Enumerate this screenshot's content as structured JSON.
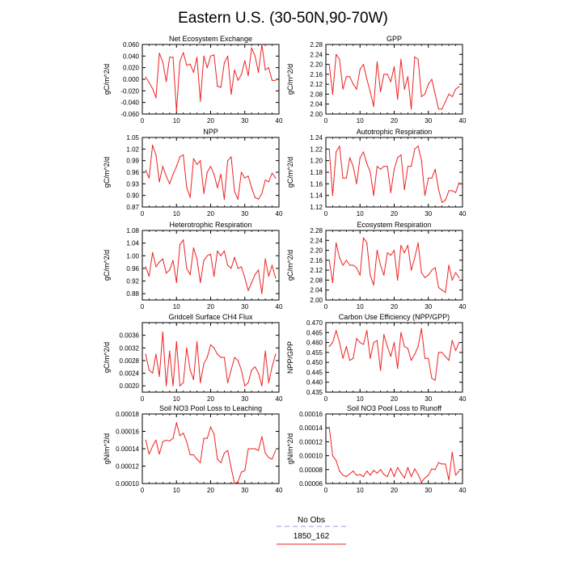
{
  "page_title": "Eastern U.S. (30-50N,90-70W)",
  "legend": {
    "entries": [
      {
        "label": "No Obs",
        "color": "#9999ee",
        "dashed": true
      },
      {
        "label": "1850_162",
        "color": "#ee2222",
        "dashed": false
      }
    ]
  },
  "chart_data": [
    {
      "type": "line",
      "title": "Net Ecosystem Exchange",
      "ylabel": "gC/m^2/d",
      "xlim": [
        0,
        40
      ],
      "xticks": [
        0,
        10,
        20,
        30,
        40
      ],
      "ylim": [
        -0.06,
        0.06
      ],
      "yticks": [
        "-0.060",
        "-0.040",
        "-0.020",
        "0.000",
        "0.020",
        "0.040",
        "0.060"
      ],
      "grid": false,
      "color": "#ee2222",
      "series": [
        {
          "x": [
            1,
            2,
            3,
            4,
            5,
            6,
            7,
            8,
            9,
            10,
            11,
            12,
            13,
            14,
            15,
            16,
            17,
            18,
            19,
            20,
            21,
            22,
            23,
            24,
            25,
            26,
            27,
            28,
            29,
            30,
            31,
            32,
            33,
            34,
            35,
            36,
            37,
            38,
            39
          ],
          "values": [
            0.004,
            -0.006,
            -0.016,
            -0.032,
            0.045,
            0.03,
            -0.004,
            0.038,
            0.038,
            -0.055,
            0.031,
            0.046,
            0.024,
            0.026,
            0.012,
            0.038,
            -0.038,
            0.04,
            0.02,
            0.04,
            0.042,
            -0.012,
            -0.014,
            0.028,
            0.04,
            -0.026,
            0.016,
            -0.002,
            0.008,
            0.032,
            0.006,
            0.054,
            0.04,
            0.012,
            0.06,
            0.016,
            0.02,
            -0.002,
            -0.002
          ]
        }
      ]
    },
    {
      "type": "line",
      "title": "GPP",
      "ylabel": "gC/m^2/d",
      "xlim": [
        0,
        40
      ],
      "xticks": [
        0,
        10,
        20,
        30,
        40
      ],
      "ylim": [
        2.0,
        2.28
      ],
      "yticks": [
        "2.00",
        "2.04",
        "2.08",
        "2.12",
        "2.16",
        "2.20",
        "2.24",
        "2.28"
      ],
      "grid": false,
      "color": "#ee2222",
      "series": [
        {
          "x": [
            1,
            2,
            3,
            4,
            5,
            6,
            7,
            8,
            9,
            10,
            11,
            12,
            13,
            14,
            15,
            16,
            17,
            18,
            19,
            20,
            21,
            22,
            23,
            24,
            25,
            26,
            27,
            28,
            29,
            30,
            31,
            32,
            33,
            34,
            35,
            36,
            37,
            38,
            39
          ],
          "values": [
            2.2,
            2.08,
            2.24,
            2.22,
            2.1,
            2.15,
            2.15,
            2.12,
            2.1,
            2.18,
            2.2,
            2.14,
            2.09,
            2.03,
            2.21,
            2.09,
            2.16,
            2.16,
            2.13,
            2.19,
            2.06,
            2.22,
            2.1,
            2.15,
            2.02,
            2.23,
            2.22,
            2.07,
            2.08,
            2.12,
            2.14,
            2.08,
            2.02,
            2.02,
            2.05,
            2.08,
            2.07,
            2.1,
            2.11
          ]
        }
      ]
    },
    {
      "type": "line",
      "title": "NPP",
      "ylabel": "gC/m^2/d",
      "xlim": [
        0,
        40
      ],
      "xticks": [
        0,
        10,
        20,
        30,
        40
      ],
      "ylim": [
        0.87,
        1.05
      ],
      "yticks": [
        "0.87",
        "0.90",
        "0.93",
        "0.96",
        "0.99",
        "1.02",
        "1.05"
      ],
      "grid": false,
      "color": "#ee2222",
      "series": [
        {
          "x": [
            1,
            2,
            3,
            4,
            5,
            6,
            7,
            8,
            9,
            10,
            11,
            12,
            13,
            14,
            15,
            16,
            17,
            18,
            19,
            20,
            21,
            22,
            23,
            24,
            25,
            26,
            27,
            28,
            29,
            30,
            31,
            32,
            33,
            34,
            35,
            36,
            37,
            38,
            39
          ],
          "values": [
            0.965,
            0.945,
            1.03,
            1.005,
            0.935,
            0.975,
            0.95,
            0.93,
            0.955,
            0.975,
            1.0,
            1.005,
            0.92,
            0.895,
            0.995,
            0.98,
            0.99,
            0.905,
            0.96,
            0.975,
            0.955,
            0.92,
            0.955,
            0.89,
            0.99,
            1.0,
            0.91,
            0.89,
            0.96,
            0.945,
            0.95,
            0.92,
            0.895,
            0.89,
            0.905,
            0.94,
            0.935,
            0.958,
            0.945
          ]
        }
      ]
    },
    {
      "type": "line",
      "title": "Autotrophic Respiration",
      "ylabel": "gC/m^2/d",
      "xlim": [
        0,
        40
      ],
      "xticks": [
        0,
        10,
        20,
        30,
        40
      ],
      "ylim": [
        1.12,
        1.24
      ],
      "yticks": [
        "1.12",
        "1.14",
        "1.16",
        "1.18",
        "1.20",
        "1.22",
        "1.24"
      ],
      "grid": false,
      "color": "#ee2222",
      "series": [
        {
          "x": [
            1,
            2,
            3,
            4,
            5,
            6,
            7,
            8,
            9,
            10,
            11,
            12,
            13,
            14,
            15,
            16,
            17,
            18,
            19,
            20,
            21,
            22,
            23,
            24,
            25,
            26,
            27,
            28,
            29,
            30,
            31,
            32,
            33,
            34,
            35,
            36,
            37,
            38,
            39
          ],
          "values": [
            1.22,
            1.14,
            1.215,
            1.225,
            1.17,
            1.17,
            1.205,
            1.19,
            1.16,
            1.205,
            1.215,
            1.195,
            1.18,
            1.14,
            1.19,
            1.185,
            1.19,
            1.19,
            1.145,
            1.185,
            1.205,
            1.21,
            1.15,
            1.19,
            1.19,
            1.22,
            1.225,
            1.2,
            1.14,
            1.17,
            1.17,
            1.185,
            1.15,
            1.128,
            1.132,
            1.148,
            1.148,
            1.145,
            1.162
          ]
        }
      ]
    },
    {
      "type": "line",
      "title": "Heterotrophic Respiration",
      "ylabel": "gC/m^2/d",
      "xlim": [
        0,
        40
      ],
      "xticks": [
        0,
        10,
        20,
        30,
        40
      ],
      "ylim": [
        0.86,
        1.08
      ],
      "yticks": [
        "0.88",
        "0.92",
        "0.96",
        "1.00",
        "1.04",
        "1.08"
      ],
      "grid": false,
      "color": "#ee2222",
      "series": [
        {
          "x": [
            1,
            2,
            3,
            4,
            5,
            6,
            7,
            8,
            9,
            10,
            11,
            12,
            13,
            14,
            15,
            16,
            17,
            18,
            19,
            20,
            21,
            22,
            23,
            24,
            25,
            26,
            27,
            28,
            29,
            30,
            31,
            32,
            33,
            34,
            35,
            36,
            37,
            38,
            39
          ],
          "values": [
            0.965,
            0.935,
            1.01,
            0.965,
            0.98,
            0.99,
            0.945,
            0.955,
            0.985,
            0.915,
            1.035,
            1.05,
            0.96,
            0.94,
            1.025,
            0.99,
            0.915,
            0.985,
            1.0,
            1.005,
            0.935,
            1.015,
            1.0,
            1.015,
            0.97,
            0.96,
            0.995,
            0.96,
            0.965,
            0.93,
            0.89,
            0.915,
            0.94,
            0.955,
            0.88,
            0.99,
            0.935,
            0.97,
            0.93
          ]
        }
      ]
    },
    {
      "type": "line",
      "title": "Ecosystem Respiration",
      "ylabel": "gC/m^2/d",
      "xlim": [
        0,
        40
      ],
      "xticks": [
        0,
        10,
        20,
        30,
        40
      ],
      "ylim": [
        2.0,
        2.28
      ],
      "yticks": [
        "2.00",
        "2.04",
        "2.08",
        "2.12",
        "2.16",
        "2.20",
        "2.24",
        "2.28"
      ],
      "grid": false,
      "color": "#ee2222",
      "series": [
        {
          "x": [
            1,
            2,
            3,
            4,
            5,
            6,
            7,
            8,
            9,
            10,
            11,
            12,
            13,
            14,
            15,
            16,
            17,
            18,
            19,
            20,
            21,
            22,
            23,
            24,
            25,
            26,
            27,
            28,
            29,
            30,
            31,
            32,
            33,
            34,
            35,
            36,
            37,
            38,
            39
          ],
          "values": [
            2.16,
            2.07,
            2.23,
            2.17,
            2.14,
            2.16,
            2.14,
            2.14,
            2.13,
            2.1,
            2.25,
            2.23,
            2.1,
            2.06,
            2.2,
            2.14,
            2.1,
            2.19,
            2.18,
            2.2,
            2.08,
            2.22,
            2.19,
            2.22,
            2.12,
            2.17,
            2.23,
            2.11,
            2.09,
            2.1,
            2.12,
            2.13,
            2.05,
            2.04,
            2.03,
            2.14,
            2.08,
            2.11,
            2.09
          ]
        }
      ]
    },
    {
      "type": "line",
      "title": "Gridcell Surface CH4 Flux",
      "ylabel": "gC/m^2/d",
      "xlim": [
        0,
        40
      ],
      "xticks": [
        0,
        10,
        20,
        30,
        40
      ],
      "ylim": [
        0.0018,
        0.004
      ],
      "yticks": [
        "0.0020",
        "0.0024",
        "0.0028",
        "0.0032",
        "0.0036"
      ],
      "grid": false,
      "color": "#ee2222",
      "series": [
        {
          "x": [
            1,
            2,
            3,
            4,
            5,
            6,
            7,
            8,
            9,
            10,
            11,
            12,
            13,
            14,
            15,
            16,
            17,
            18,
            19,
            20,
            21,
            22,
            23,
            24,
            25,
            26,
            27,
            28,
            29,
            30,
            31,
            32,
            33,
            34,
            35,
            36,
            37,
            38,
            39
          ],
          "values": [
            0.003,
            0.0025,
            0.0024,
            0.003,
            0.0023,
            0.0037,
            0.002,
            0.0031,
            0.002,
            0.0034,
            0.002,
            0.0021,
            0.0032,
            0.0025,
            0.0022,
            0.0034,
            0.0021,
            0.0027,
            0.0029,
            0.0033,
            0.0032,
            0.003,
            0.0029,
            0.0029,
            0.0021,
            0.0025,
            0.0029,
            0.0028,
            0.0025,
            0.002,
            0.0021,
            0.0025,
            0.0026,
            0.0024,
            0.002,
            0.0031,
            0.0021,
            0.0026,
            0.003
          ]
        }
      ]
    },
    {
      "type": "line",
      "title": "Carbon Use Efficiency (NPP/GPP)",
      "ylabel": "NPP/GPP",
      "xlim": [
        0,
        40
      ],
      "xticks": [
        0,
        10,
        20,
        30,
        40
      ],
      "ylim": [
        0.435,
        0.47
      ],
      "yticks": [
        "0.435",
        "0.440",
        "0.445",
        "0.450",
        "0.455",
        "0.460",
        "0.465",
        "0.470"
      ],
      "grid": false,
      "color": "#ee2222",
      "series": [
        {
          "x": [
            1,
            2,
            3,
            4,
            5,
            6,
            7,
            8,
            9,
            10,
            11,
            12,
            13,
            14,
            15,
            16,
            17,
            18,
            19,
            20,
            21,
            22,
            23,
            24,
            25,
            26,
            27,
            28,
            29,
            30,
            31,
            32,
            33,
            34,
            35,
            36,
            37,
            38,
            39
          ],
          "values": [
            0.458,
            0.46,
            0.466,
            0.46,
            0.452,
            0.458,
            0.451,
            0.452,
            0.462,
            0.46,
            0.459,
            0.466,
            0.452,
            0.46,
            0.461,
            0.446,
            0.464,
            0.458,
            0.453,
            0.46,
            0.447,
            0.465,
            0.458,
            0.457,
            0.451,
            0.454,
            0.458,
            0.467,
            0.452,
            0.452,
            0.442,
            0.441,
            0.455,
            0.455,
            0.453,
            0.451,
            0.461,
            0.456,
            0.46
          ]
        }
      ]
    },
    {
      "type": "line",
      "title": "Soil NO3 Pool Loss to Leaching",
      "ylabel": "gN/m^2/d",
      "xlim": [
        0,
        40
      ],
      "xticks": [
        0,
        10,
        20,
        30,
        40
      ],
      "ylim": [
        0.0001,
        0.00018
      ],
      "yticks": [
        "0.00010",
        "0.00012",
        "0.00014",
        "0.00016",
        "0.00018"
      ],
      "grid": false,
      "color": "#ee2222",
      "series": [
        {
          "x": [
            1,
            2,
            3,
            4,
            5,
            6,
            7,
            8,
            9,
            10,
            11,
            12,
            13,
            14,
            15,
            16,
            17,
            18,
            19,
            20,
            21,
            22,
            23,
            24,
            25,
            26,
            27,
            28,
            29,
            30,
            31,
            32,
            33,
            34,
            35,
            36,
            37,
            38,
            39
          ],
          "values": [
            0.00015,
            0.000134,
            0.000143,
            0.00015,
            0.000134,
            0.000148,
            0.00015,
            0.000149,
            0.000152,
            0.00017,
            0.000155,
            0.000158,
            0.000148,
            0.000133,
            0.000133,
            0.000128,
            0.000124,
            0.000152,
            0.000152,
            0.000165,
            0.000157,
            0.000128,
            0.000124,
            0.000135,
            0.000138,
            0.000118,
            0.0001,
            0.000102,
            0.000113,
            0.000115,
            0.00014,
            0.00014,
            0.00014,
            0.000138,
            0.000154,
            0.000135,
            0.00013,
            0.000128,
            0.000138
          ]
        }
      ]
    },
    {
      "type": "line",
      "title": "Soil NO3 Pool Loss to Runoff",
      "ylabel": "gN/m^2/d",
      "xlim": [
        0,
        40
      ],
      "xticks": [
        0,
        10,
        20,
        30,
        40
      ],
      "ylim": [
        6e-05,
        0.00016
      ],
      "yticks": [
        "0.00006",
        "0.00008",
        "0.00010",
        "0.00012",
        "0.00014",
        "0.00016"
      ],
      "grid": false,
      "color": "#ee2222",
      "series": [
        {
          "x": [
            1,
            2,
            3,
            4,
            5,
            6,
            7,
            8,
            9,
            10,
            11,
            12,
            13,
            14,
            15,
            16,
            17,
            18,
            19,
            20,
            21,
            22,
            23,
            24,
            25,
            26,
            27,
            28,
            29,
            30,
            31,
            32,
            33,
            34,
            35,
            36,
            37,
            38,
            39
          ],
          "values": [
            0.000141,
            0.0001,
            9.3e-05,
            7.8e-05,
            7.2e-05,
            7e-05,
            7.4e-05,
            7.8e-05,
            7.2e-05,
            7.3e-05,
            7e-05,
            7.8e-05,
            7.2e-05,
            7.9e-05,
            7.5e-05,
            8e-05,
            7.3e-05,
            7e-05,
            8.2e-05,
            7e-05,
            8.3e-05,
            7.5e-05,
            6.8e-05,
            8.3e-05,
            7e-05,
            8.1e-05,
            7.3e-05,
            6.2e-05,
            6.8e-05,
            7.2e-05,
            8.1e-05,
            8e-05,
            9e-05,
            8.8e-05,
            8.8e-05,
            6.5e-05,
            0.000105,
            7.2e-05,
            7.8e-05
          ]
        }
      ]
    }
  ]
}
